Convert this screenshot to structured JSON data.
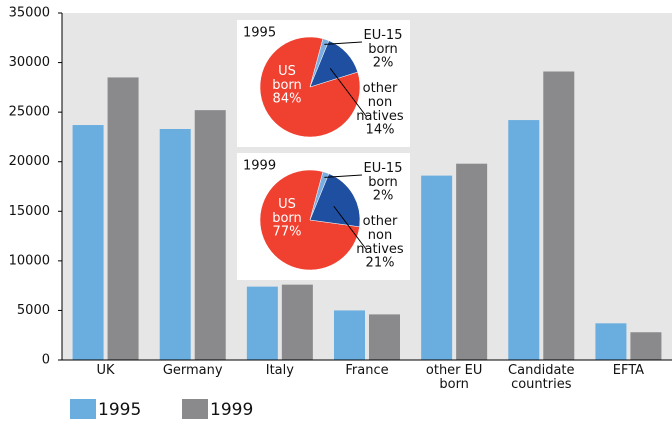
{
  "chart_data": [
    {
      "type": "bar",
      "categories": [
        "UK",
        "Germany",
        "Italy",
        "France",
        "other EU born",
        "Candidate countries",
        "EFTA"
      ],
      "series": [
        {
          "name": "1995",
          "color": "#6aaee0",
          "values": [
            23700,
            23300,
            7400,
            5000,
            18600,
            24200,
            3700
          ]
        },
        {
          "name": "1999",
          "color": "#8a8a8c",
          "values": [
            28500,
            25200,
            7600,
            4600,
            19800,
            29100,
            2800
          ]
        }
      ],
      "ylim": [
        0,
        35000
      ],
      "yticks": [
        0,
        5000,
        10000,
        15000,
        20000,
        25000,
        30000,
        35000
      ],
      "grid": false,
      "legend": "bottom-left"
    },
    {
      "type": "pie",
      "title": "1995",
      "categories": [
        "US born",
        "EU-15 born",
        "other non natives"
      ],
      "values": [
        84,
        2,
        14
      ],
      "value_labels": [
        "84%",
        "2%",
        "14%"
      ],
      "colors": [
        "#f04030",
        "#7aaee0",
        "#1f4fa0"
      ]
    },
    {
      "type": "pie",
      "title": "1999",
      "categories": [
        "US born",
        "EU-15 born",
        "other non natives"
      ],
      "values": [
        77,
        2,
        21
      ],
      "value_labels": [
        "77%",
        "2%",
        "21%"
      ],
      "colors": [
        "#f04030",
        "#7aaee0",
        "#1f4fa0"
      ]
    }
  ]
}
